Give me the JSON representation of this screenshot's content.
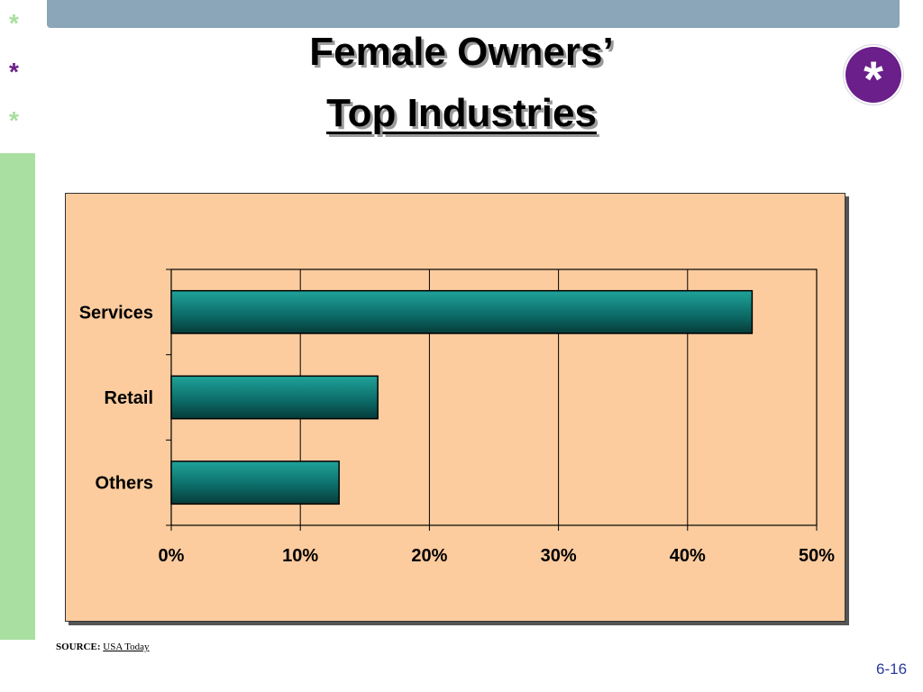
{
  "slide": {
    "title_line1": "Female Owners’",
    "title_line2": "Top Industries",
    "star_symbol": "*",
    "star_colors": [
      "#a9dfa0",
      "#6a1f8a",
      "#a9dfa0"
    ],
    "badge_symbol": "*",
    "source_label": "SOURCE:",
    "source_name": "USA Today",
    "page_number": "6-16"
  },
  "colors": {
    "chart_background": "#fccc9e",
    "bar_color": "#0d6e6a",
    "top_bar": "#8aa6b8",
    "left_strip": "#a9dfa0",
    "badge": "#6a1f8a"
  },
  "chart_data": {
    "type": "bar",
    "orientation": "horizontal",
    "categories": [
      "Services",
      "Retail",
      "Others"
    ],
    "values": [
      45,
      16,
      13
    ],
    "x_ticks": [
      "0%",
      "10%",
      "20%",
      "30%",
      "40%",
      "50%"
    ],
    "xlim": [
      0,
      50
    ],
    "grid": true,
    "legend": "none"
  }
}
